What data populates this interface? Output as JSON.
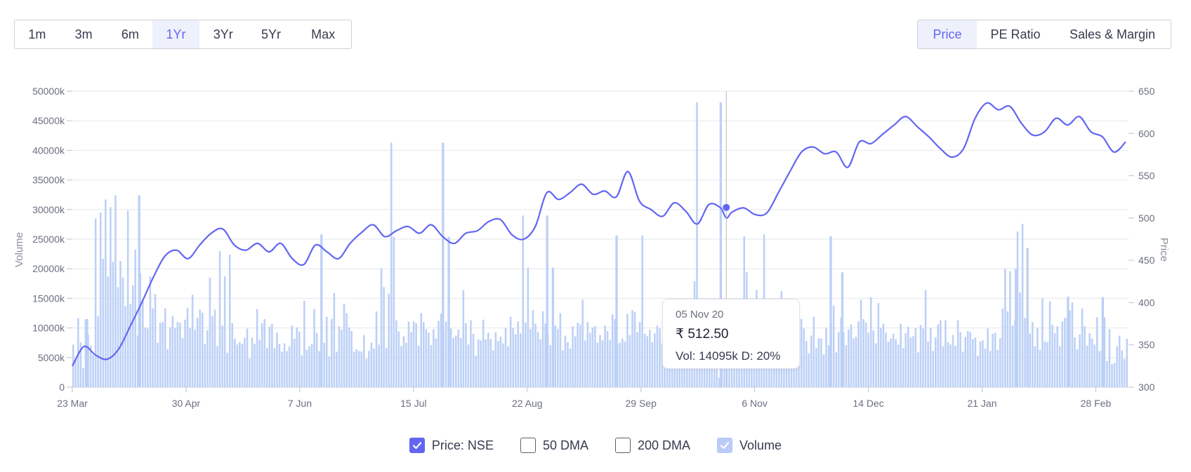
{
  "range_buttons": [
    {
      "label": "1m",
      "active": false
    },
    {
      "label": "3m",
      "active": false
    },
    {
      "label": "6m",
      "active": false
    },
    {
      "label": "1Yr",
      "active": true
    },
    {
      "label": "3Yr",
      "active": false
    },
    {
      "label": "5Yr",
      "active": false
    },
    {
      "label": "Max",
      "active": false
    }
  ],
  "metric_buttons": [
    {
      "label": "Price",
      "active": true
    },
    {
      "label": "PE Ratio",
      "active": false
    },
    {
      "label": "Sales & Margin",
      "active": false
    }
  ],
  "tooltip": {
    "date": "05 Nov 20",
    "price": "₹ 512.50",
    "vol": "Vol: 14095k",
    "delivery": "D: 20%"
  },
  "legend": [
    {
      "label": "Price: NSE",
      "state": "checked"
    },
    {
      "label": "50 DMA",
      "state": "unchecked"
    },
    {
      "label": "200 DMA",
      "state": "unchecked"
    },
    {
      "label": "Volume",
      "state": "checked-light"
    }
  ],
  "colors": {
    "price_line": "#6366f1",
    "volume_bar": "#bcd0f7",
    "grid": "#e6e7ec",
    "accent": "#6366f1"
  },
  "chart_data": {
    "type": "line+bar",
    "x_tick_labels": [
      "23 Mar",
      "30 Apr",
      "7 Jun",
      "15 Jul",
      "22 Aug",
      "29 Sep",
      "6 Nov",
      "14 Dec",
      "21 Jan",
      "28 Feb"
    ],
    "y_left_label": "Volume",
    "y_left_ticks": [
      "0",
      "5000k",
      "10000k",
      "15000k",
      "20000k",
      "25000k",
      "30000k",
      "35000k",
      "40000k",
      "45000k",
      "50000k"
    ],
    "y_left_range": [
      0,
      50000
    ],
    "y_right_label": "Price",
    "y_right_ticks": [
      "300",
      "350",
      "400",
      "450",
      "500",
      "550",
      "600",
      "650"
    ],
    "y_right_range": [
      300,
      650
    ],
    "price_series": {
      "name": "Price: NSE",
      "x_day": [
        0,
        4,
        8,
        12,
        16,
        20,
        24,
        28,
        32,
        36,
        40,
        44,
        48,
        52,
        56,
        60,
        64,
        68,
        72,
        76,
        80,
        84,
        88,
        92,
        96,
        100,
        104,
        108,
        112,
        116,
        120,
        124,
        128,
        132,
        136,
        140,
        144,
        148,
        152,
        156,
        160,
        164,
        168,
        172,
        176,
        180,
        184,
        188,
        192,
        196,
        200,
        204,
        208,
        212,
        216,
        220,
        224,
        226,
        228,
        232,
        236,
        240,
        244,
        248,
        252,
        256,
        260,
        264,
        268,
        272,
        276,
        280,
        284,
        288,
        292,
        296,
        300,
        304,
        308,
        312,
        316,
        320,
        324,
        328,
        332,
        336,
        340,
        344,
        348,
        352,
        356,
        360,
        364
      ],
      "values": [
        325,
        348,
        338,
        333,
        345,
        372,
        400,
        430,
        455,
        462,
        452,
        468,
        482,
        487,
        468,
        462,
        470,
        460,
        470,
        452,
        445,
        468,
        460,
        452,
        470,
        483,
        492,
        478,
        485,
        490,
        482,
        492,
        478,
        470,
        482,
        485,
        496,
        498,
        480,
        475,
        490,
        530,
        522,
        530,
        540,
        528,
        532,
        525,
        555,
        520,
        510,
        502,
        518,
        508,
        493,
        516,
        512,
        500,
        507,
        512,
        504,
        506,
        530,
        555,
        578,
        584,
        576,
        578,
        560,
        590,
        588,
        599,
        610,
        620,
        608,
        596,
        582,
        572,
        582,
        618,
        636,
        628,
        632,
        612,
        598,
        602,
        618,
        610,
        620,
        602,
        596,
        578,
        590
      ]
    },
    "volume_series": {
      "name": "Volume",
      "unit": "k",
      "values": [
        7200,
        4800,
        11700,
        7600,
        3200,
        11500,
        8900,
        7000,
        5400,
        28500,
        12000,
        29500,
        21700,
        31700,
        18700,
        30400,
        21200,
        32400,
        16900,
        21300,
        18500,
        13700,
        29800,
        14000,
        17200,
        23200,
        8700,
        19200,
        14800,
        10100,
        9900,
        18700,
        13300,
        15700,
        7500,
        10900,
        11000,
        13300,
        6400,
        10100,
        12000,
        10000,
        11000,
        10900,
        8300,
        11400,
        13400,
        10000,
        15600,
        9700,
        11700,
        13100,
        12600,
        7300,
        9600,
        18500,
        12000,
        13100,
        6900,
        23000,
        10400,
        18700,
        5800,
        22400,
        10800,
        8200,
        7200,
        7600,
        7300,
        8300,
        9900,
        4800,
        8400,
        7300,
        13200,
        8000,
        10800,
        11500,
        6600,
        10200,
        10700,
        6600,
        9200,
        7300,
        6000,
        7400,
        6100,
        6900,
        10400,
        8200,
        10100,
        9400,
        5400,
        14600,
        6300,
        6900,
        7300,
        13200,
        9200,
        6100,
        11400,
        7500,
        11900,
        5200,
        11500,
        15900,
        6000,
        10300,
        9700,
        14100,
        12500,
        10100,
        9500,
        6000,
        6400,
        6100,
        6000,
        8800,
        4800,
        6100,
        7500,
        6500,
        12800,
        7200,
        20100,
        16900,
        6600,
        15800,
        41300,
        25400,
        11300,
        9400,
        6900,
        8600,
        7500,
        11100,
        9300,
        11100,
        10800,
        7000,
        12500,
        11000,
        9800,
        9200,
        7100,
        9800,
        8200,
        11200,
        12400,
        9400,
        11100,
        14700,
        9900,
        8300,
        8700,
        9700,
        8300,
        16400,
        10800,
        7200,
        11300,
        9000,
        5300,
        8100,
        7900,
        11400,
        8100,
        9200,
        8100,
        6200,
        9300,
        7800,
        8500,
        7400,
        10000,
        6900,
        11900,
        10000,
        8900,
        11100,
        9100,
        29000,
        10900,
        20200,
        9800,
        13000,
        10700,
        9300,
        8100,
        12800,
        10700,
        9100,
        7100,
        7100,
        10400,
        9800,
        12500,
        6200,
        8700,
        7600,
        6500,
        10300,
        8600,
        10900,
        10600,
        14800,
        7900,
        11000,
        9200,
        10100,
        10300,
        7500,
        8800,
        7900,
        10400,
        9500,
        8000,
        12300,
        11500,
        7300,
        7500,
        8200,
        7700,
        12400,
        8800,
        13000,
        12700,
        9300,
        11000,
        25600,
        9000,
        8600,
        9700,
        7600,
        9100,
        10400,
        9900,
        7400,
        6400,
        7100,
        12100,
        8600,
        7400,
        4100,
        11600,
        6600,
        7700,
        4900,
        8300,
        10300,
        17900,
        48100,
        9200,
        10300,
        8900,
        7300,
        10500,
        11700,
        7500,
        12600,
        1600,
        12600,
        10500,
        8100,
        9600,
        11400,
        8300,
        11400,
        11900,
        8000,
        25500,
        19400,
        9700,
        13700,
        8800,
        16400,
        9300,
        14200,
        25800,
        7500,
        11400,
        13900,
        11600,
        14100,
        7100,
        16200,
        7000,
        11500,
        10700,
        8000,
        12500,
        7000,
        8100,
        11500,
        9900,
        7800,
        5700,
        8700,
        11900,
        6600,
        8300,
        8200,
        5500,
        10000,
        7100,
        10800,
        13800,
        5900,
        9300,
        11800,
        9300,
        7100,
        9700,
        10600,
        8200,
        8500,
        11100,
        14800,
        11500,
        10900,
        9200,
        15200,
        9600,
        7400,
        14200,
        10000,
        10700,
        9200,
        7700,
        8200,
        9000,
        8100,
        7200,
        10700,
        6600,
        9100,
        10200,
        8400,
        8600,
        10000,
        5900,
        10500,
        9900,
        16400,
        7700,
        10000,
        6100,
        8400,
        10600,
        11300,
        6900,
        11300,
        7600,
        7200,
        8800,
        7000,
        11300,
        9300,
        6000,
        8500,
        9500,
        9300,
        8100,
        8400,
        5300,
        7700,
        7900,
        6500,
        9900,
        6100,
        9000,
        9200,
        6300,
        8300,
        13300,
        20000,
        12800,
        19600,
        10400,
        11300,
        26300,
        16000,
        27600,
        11700,
        7300,
        9100,
        11000,
        6900,
        10000,
        6300,
        15000,
        7700,
        7600,
        14500,
        10500,
        9100,
        10300,
        6900,
        11100,
        11700,
        11800,
        13000,
        14300,
        8400,
        6400,
        8900,
        13300,
        10300,
        7000,
        9100,
        8200,
        7200,
        11800,
        6100,
        6200,
        11800,
        4400,
        9800,
        3900,
        4100,
        6900,
        8700,
        6200,
        4800,
        8200
      ]
    },
    "volume_highlights": [
      {
        "x_day": 5,
        "value": 11500
      },
      {
        "x_day": 23,
        "value": 32400
      },
      {
        "x_day": 86,
        "value": 25800
      },
      {
        "x_day": 128,
        "value": 41300
      },
      {
        "x_day": 130,
        "value": 25400
      },
      {
        "x_day": 164,
        "value": 29000
      },
      {
        "x_day": 166,
        "value": 20200
      },
      {
        "x_day": 188,
        "value": 25600
      },
      {
        "x_day": 224,
        "value": 48100
      },
      {
        "x_day": 262,
        "value": 25500
      },
      {
        "x_day": 266,
        "value": 19400
      },
      {
        "x_day": 326,
        "value": 20000
      },
      {
        "x_day": 330,
        "value": 23500
      },
      {
        "x_day": 344,
        "value": 15300
      },
      {
        "x_day": 356,
        "value": 15200
      }
    ],
    "cursor": {
      "x_day": 226,
      "price": 512.5,
      "volume": 14095
    }
  }
}
